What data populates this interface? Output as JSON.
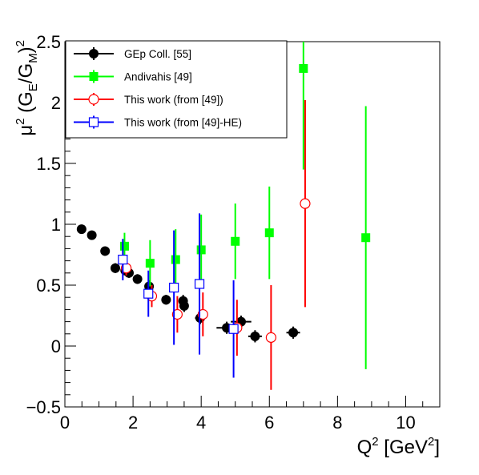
{
  "chart_data": {
    "type": "scatter",
    "xlim": [
      0,
      11
    ],
    "ylim": [
      -0.5,
      2.5
    ],
    "x_ticks": [
      "0",
      "2",
      "4",
      "6",
      "8",
      "10"
    ],
    "y_ticks": [
      "−0.5",
      "0",
      "0.5",
      "1",
      "1.5",
      "2",
      "2.5"
    ],
    "xlabel": {
      "main": "Q",
      "sup": "2",
      "mid": " [GeV",
      "sup2": "2",
      "end": "]"
    },
    "ylabel": {
      "mu": "μ",
      "sup": "2",
      "open": " (G",
      "subE": "E",
      "slash": "/G",
      "subM": "M",
      "close": ")",
      "sup2": "2"
    },
    "grid": false,
    "legend_position": "top-left",
    "series": [
      {
        "name": "GEp Coll. [55]",
        "marker": "filled-circle",
        "color": "#000000",
        "points": [
          {
            "x": 0.49,
            "y": 0.96,
            "xerr": 0,
            "yerr": 0.015
          },
          {
            "x": 0.79,
            "y": 0.91,
            "xerr": 0,
            "yerr": 0.015
          },
          {
            "x": 1.18,
            "y": 0.78,
            "xerr": 0,
            "yerr": 0.02
          },
          {
            "x": 1.48,
            "y": 0.64,
            "xerr": 0.05,
            "yerr": 0.04
          },
          {
            "x": 1.77,
            "y": 0.62,
            "xerr": 0.05,
            "yerr": 0.04
          },
          {
            "x": 1.88,
            "y": 0.6,
            "xerr": 0.05,
            "yerr": 0.04
          },
          {
            "x": 2.13,
            "y": 0.55,
            "xerr": 0.05,
            "yerr": 0.04
          },
          {
            "x": 2.47,
            "y": 0.49,
            "xerr": 0.05,
            "yerr": 0.05
          },
          {
            "x": 2.97,
            "y": 0.38,
            "xerr": 0.1,
            "yerr": 0.04
          },
          {
            "x": 3.47,
            "y": 0.37,
            "xerr": 0.1,
            "yerr": 0.05
          },
          {
            "x": 3.5,
            "y": 0.33,
            "xerr": 0.1,
            "yerr": 0.05
          },
          {
            "x": 3.97,
            "y": 0.23,
            "xerr": 0.15,
            "yerr": 0.05
          },
          {
            "x": 4.75,
            "y": 0.15,
            "xerr": 0.3,
            "yerr": 0.05
          },
          {
            "x": 5.17,
            "y": 0.2,
            "xerr": 0.3,
            "yerr": 0.05
          },
          {
            "x": 5.58,
            "y": 0.08,
            "xerr": 0.2,
            "yerr": 0.05
          },
          {
            "x": 6.7,
            "y": 0.11,
            "xerr": 0.2,
            "yerr": 0.05
          }
        ]
      },
      {
        "name": "Andivahis [49]",
        "marker": "filled-square",
        "color": "#00ff00",
        "points": [
          {
            "x": 1.75,
            "y": 0.82,
            "yerr": 0.11
          },
          {
            "x": 2.5,
            "y": 0.68,
            "yerr": 0.19
          },
          {
            "x": 3.25,
            "y": 0.71,
            "yerr": 0.25
          },
          {
            "x": 4.0,
            "y": 0.79,
            "yerr": 0.29
          },
          {
            "x": 5.0,
            "y": 0.86,
            "yerr": 0.31
          },
          {
            "x": 6.0,
            "y": 0.93,
            "yerr": 0.38
          },
          {
            "x": 7.0,
            "y": 2.28,
            "yerr": 0.83
          },
          {
            "x": 8.83,
            "y": 0.89,
            "yerr": 1.08
          }
        ]
      },
      {
        "name": "This work (from [49])",
        "marker": "open-circle",
        "color": "#ff0000",
        "points": [
          {
            "x": 1.8,
            "y": 0.64,
            "yerr": 0.06
          },
          {
            "x": 2.55,
            "y": 0.41,
            "yerr": 0.09
          },
          {
            "x": 3.3,
            "y": 0.26,
            "yerr": 0.15
          },
          {
            "x": 4.05,
            "y": 0.26,
            "yerr": 0.18
          },
          {
            "x": 5.05,
            "y": 0.15,
            "yerr": 0.23
          },
          {
            "x": 6.05,
            "y": 0.07,
            "yerr": 0.43
          },
          {
            "x": 7.05,
            "y": 1.17,
            "yerr": 0.85
          }
        ]
      },
      {
        "name": "This work (from [49]-HE)",
        "marker": "open-square",
        "color": "#0000ff",
        "points": [
          {
            "x": 1.7,
            "y": 0.71,
            "yerr": 0.17
          },
          {
            "x": 2.45,
            "y": 0.43,
            "yerr": 0.19
          },
          {
            "x": 3.2,
            "y": 0.48,
            "yerr": 0.47
          },
          {
            "x": 3.95,
            "y": 0.51,
            "yerr": 0.58
          },
          {
            "x": 4.95,
            "y": 0.14,
            "yerr": 0.4
          }
        ]
      }
    ]
  }
}
